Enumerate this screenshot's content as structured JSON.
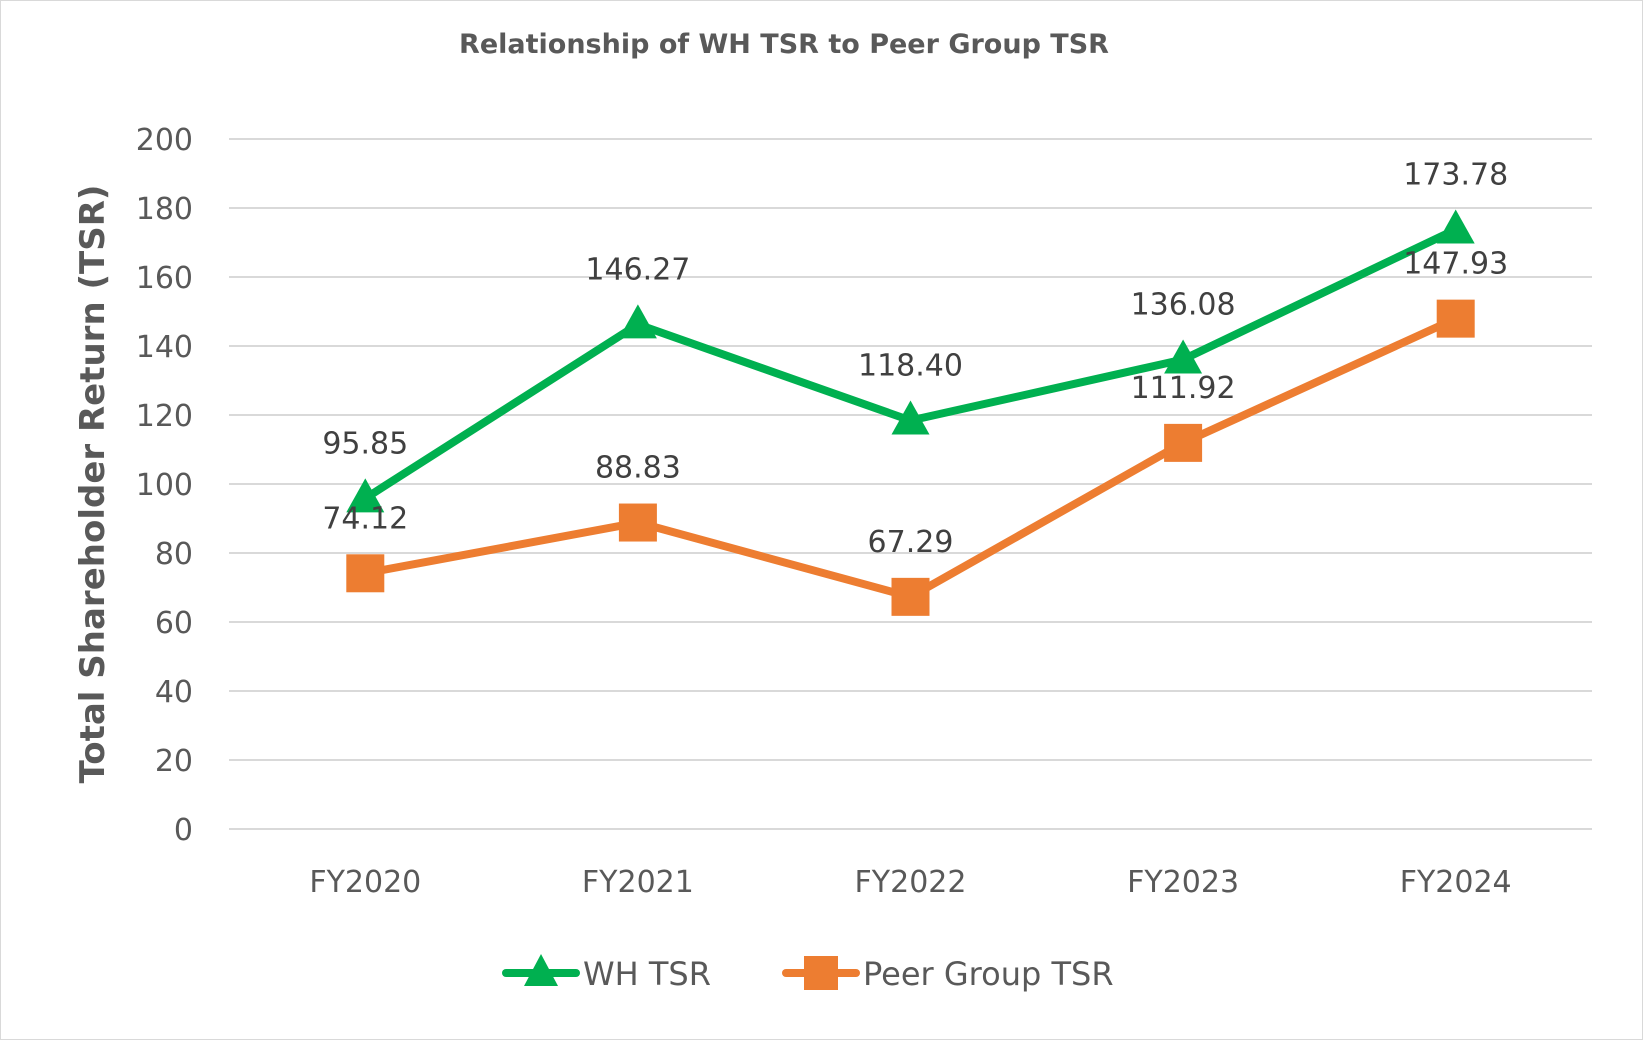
{
  "chart_data": {
    "type": "line",
    "title": "Relationship of WH TSR to Peer Group TSR",
    "xlabel": "",
    "ylabel": "Total Shareholder Return (TSR)",
    "categories": [
      "FY2020",
      "FY2021",
      "FY2022",
      "FY2023",
      "FY2024"
    ],
    "ylim": [
      0,
      200
    ],
    "yticks": [
      0,
      20,
      40,
      60,
      80,
      100,
      120,
      140,
      160,
      180,
      200
    ],
    "grid": true,
    "legend": "bottom",
    "series": [
      {
        "name": "WH TSR",
        "marker": "triangle",
        "color": "#00B050",
        "values": [
          95.85,
          146.27,
          118.4,
          136.08,
          173.78
        ],
        "labels": [
          "95.85",
          "146.27",
          "118.40",
          "136.08",
          "173.78"
        ]
      },
      {
        "name": "Peer Group TSR",
        "marker": "square",
        "color": "#ED7D31",
        "values": [
          74.12,
          88.83,
          67.29,
          111.92,
          147.93
        ],
        "labels": [
          "74.12",
          "88.83",
          "67.29",
          "111.92",
          "147.93"
        ]
      }
    ]
  }
}
